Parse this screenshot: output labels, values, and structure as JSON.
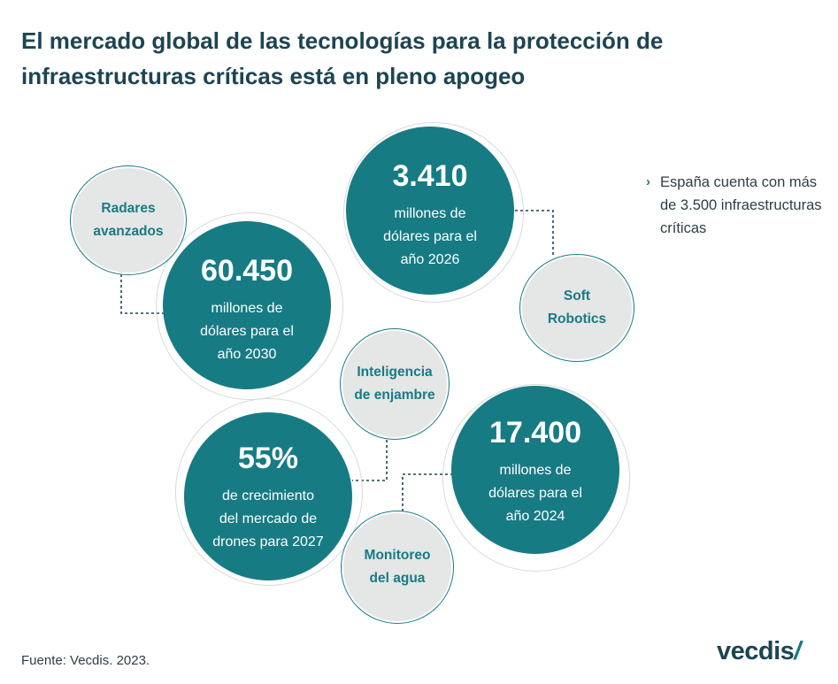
{
  "title": {
    "line1": "El mercado global de las tecnologías para la protección de",
    "line2": "infraestructuras críticas está en pleno apogeo"
  },
  "stats": [
    {
      "value": "60.450",
      "desc1": "millones de",
      "desc2": "dólares para el",
      "desc3": "año 2030"
    },
    {
      "value": "3.410",
      "desc1": "millones de",
      "desc2": "dólares para el",
      "desc3": "año 2026"
    },
    {
      "value": "55%",
      "desc1": "de crecimiento",
      "desc2": "del mercado de",
      "desc3": "drones para 2027"
    },
    {
      "value": "17.400",
      "desc1": "millones de",
      "desc2": "dólares para el",
      "desc3": "año 2024"
    }
  ],
  "technologies": [
    {
      "line1": "Radares",
      "line2": "avanzados"
    },
    {
      "line1": "Soft",
      "line2": "Robotics"
    },
    {
      "line1": "Inteligencia",
      "line2": "de enjambre"
    },
    {
      "line1": "Monitoreo",
      "line2": "del agua"
    }
  ],
  "note": {
    "chevron": "›",
    "text": "España cuenta con más de 3.500 infraestructuras críticas"
  },
  "source": "Fuente: Vecdis. 2023.",
  "logo": {
    "text": "vecdis",
    "mark": "/"
  },
  "colors": {
    "teal": "#177b84",
    "dark": "#1d4452",
    "gray": "#e5e6e6"
  }
}
